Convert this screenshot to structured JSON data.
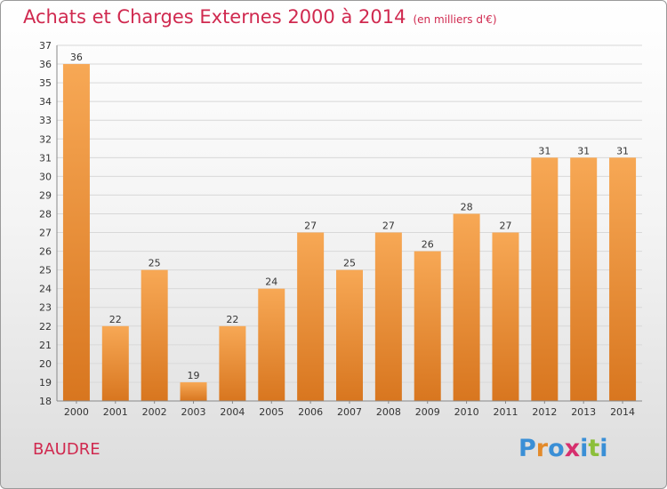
{
  "title": "Achats et Charges Externes 2000 à 2014",
  "subtitle": "(en milliers d'€)",
  "place_name": "BAUDRE",
  "logo_text": [
    "P",
    "r",
    "o",
    "x",
    "i",
    "t",
    "i"
  ],
  "logo_colors": [
    "#3a8fd6",
    "#e38a2a",
    "#3a8fd6",
    "#d62f6e",
    "#3a8fd6",
    "#8cbf3a",
    "#3a8fd6"
  ],
  "colors": {
    "title": "#d0294f",
    "bar_light": "#f7a855",
    "bar_dark": "#d8761f",
    "grid": "#d8d8d8"
  },
  "chart_data": {
    "type": "bar",
    "title": "Achats et Charges Externes 2000 à 2014",
    "subtitle": "(en milliers d'€)",
    "categories": [
      "2000",
      "2001",
      "2002",
      "2003",
      "2004",
      "2005",
      "2006",
      "2007",
      "2008",
      "2009",
      "2010",
      "2011",
      "2012",
      "2013",
      "2014"
    ],
    "values": [
      36,
      22,
      25,
      19,
      22,
      24,
      27,
      25,
      27,
      26,
      28,
      27,
      31,
      31,
      31
    ],
    "ylim": [
      18,
      37
    ],
    "yticks": [
      18,
      19,
      20,
      21,
      22,
      23,
      24,
      25,
      26,
      27,
      28,
      29,
      30,
      31,
      32,
      33,
      34,
      35,
      36,
      37
    ],
    "grid": true,
    "xlabel": "",
    "ylabel": ""
  }
}
